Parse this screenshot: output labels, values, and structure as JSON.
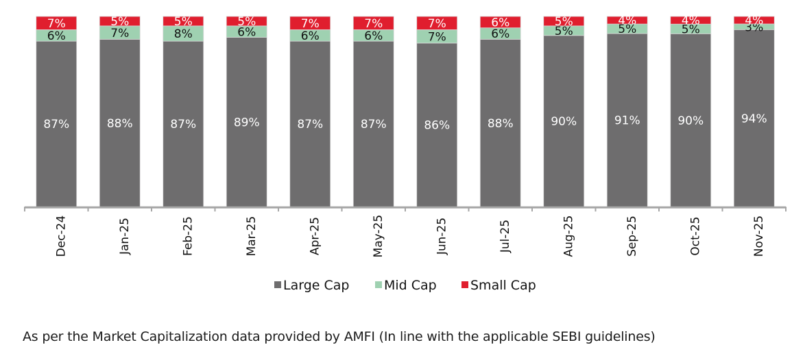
{
  "chart_data": {
    "type": "bar",
    "stacked": true,
    "title": "",
    "xlabel": "",
    "ylabel": "",
    "categories": [
      "Dec-24",
      "Jan-25",
      "Feb-25",
      "Mar-25",
      "Apr-25",
      "May-25",
      "Jun-25",
      "Jul-25",
      "Aug-25",
      "Sep-25",
      "Oct-25",
      "Nov-25"
    ],
    "series": [
      {
        "name": "Large Cap",
        "color": "#6e6d6e",
        "label_color": "#ffffff",
        "values": [
          87,
          88,
          87,
          89,
          87,
          87,
          86,
          88,
          90,
          91,
          90,
          94
        ]
      },
      {
        "name": "Mid Cap",
        "color": "#9fd1b1",
        "label_color": "#111111",
        "values": [
          6,
          7,
          8,
          6,
          6,
          6,
          7,
          6,
          5,
          5,
          5,
          3
        ]
      },
      {
        "name": "Small Cap",
        "color": "#e01e2e",
        "label_color": "#ffffff",
        "values": [
          7,
          5,
          5,
          5,
          7,
          7,
          7,
          6,
          5,
          4,
          4,
          4
        ]
      }
    ],
    "value_format": "{v}%",
    "ylim": [
      0,
      100
    ],
    "grid": false,
    "legend_position": "bottom",
    "axis_color": "#a6a6a6"
  },
  "footnote": "As per the Market Capitalization data provided by AMFI (In line with the applicable SEBI guidelines)"
}
